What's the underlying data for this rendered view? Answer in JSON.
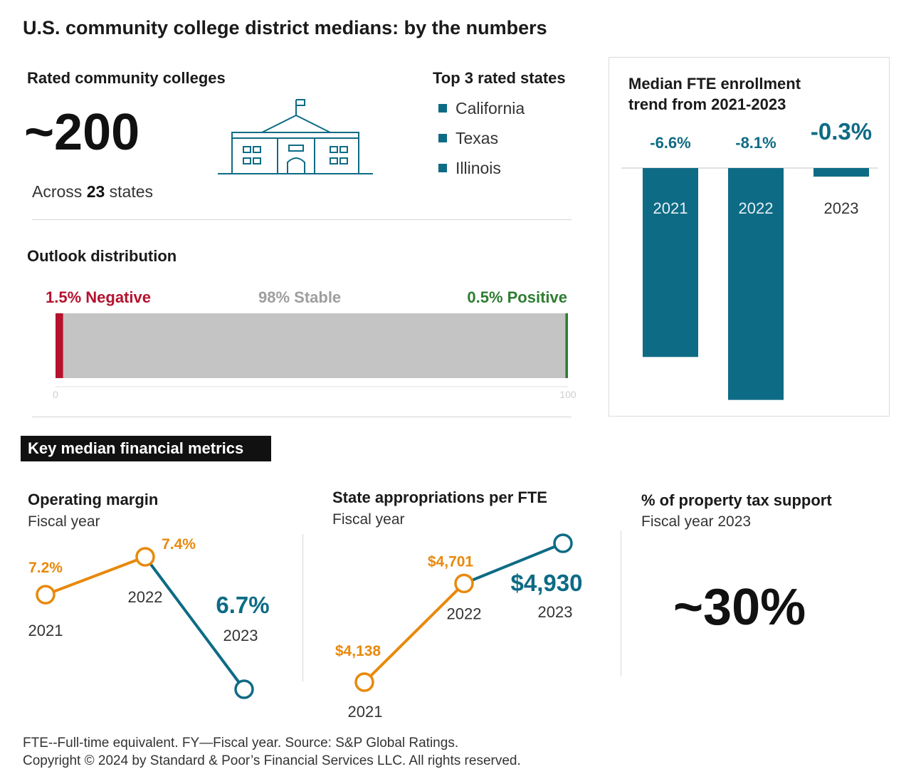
{
  "title": "U.S. community college district medians: by the numbers",
  "rated": {
    "heading": "Rated community colleges",
    "count": "~200",
    "across_prefix": "Across ",
    "across_number": "23",
    "across_suffix": " states"
  },
  "top_states": {
    "heading": "Top 3 rated states",
    "items": [
      "California",
      "Texas",
      "Illinois"
    ]
  },
  "outlook": {
    "heading": "Outlook distribution",
    "negative_label": "1.5% Negative",
    "stable_label": "98% Stable",
    "positive_label": "0.5% Positive",
    "axis_min": "0",
    "axis_max": "100"
  },
  "key_metrics_label": "Key median financial metrics",
  "operating_margin": {
    "heading": "Operating margin",
    "subheading": "Fiscal year"
  },
  "state_approp": {
    "heading": "State appropriations per FTE",
    "subheading": "Fiscal year"
  },
  "property_tax": {
    "heading": "% of property tax support",
    "subheading": "Fiscal year 2023",
    "value": "~30%"
  },
  "fte_panel": {
    "heading_line1": "Median FTE enrollment",
    "heading_line2": "trend from 2021-2023"
  },
  "footer": {
    "line1": "FTE--Full-time equivalent. FY—Fiscal year. Source: S&P Global Ratings.",
    "line2": "Copyright © 2024 by Standard & Poor’s Financial Services LLC. All rights reserved."
  },
  "colors": {
    "teal": "#0e6b85",
    "orange": "#e8890c",
    "negative": "#b5122e",
    "stable": "#c4c4c4",
    "positive": "#2e7d32",
    "black": "#111111"
  },
  "chart_data": [
    {
      "type": "bar",
      "orientation": "horizontal-stacked",
      "segments": [
        {
          "name": "Negative",
          "value": 1.5,
          "label": "1.5% Negative"
        },
        {
          "name": "Stable",
          "value": 98,
          "label": "98% Stable"
        },
        {
          "name": "Positive",
          "value": 0.5,
          "label": "0.5% Positive"
        }
      ],
      "xlim": [
        0,
        100
      ]
    },
    {
      "type": "bar",
      "categories": [
        "2021",
        "2022",
        "2023"
      ],
      "values": [
        -6.6,
        -8.1,
        -0.3
      ],
      "labels": [
        "-6.6%",
        "-8.1%",
        "-0.3%"
      ],
      "ylim": [
        -8.5,
        0
      ]
    },
    {
      "type": "line",
      "x": [
        "2021",
        "2022",
        "2023"
      ],
      "values": [
        7.2,
        7.4,
        6.7
      ],
      "labels": [
        "7.2%",
        "7.4%",
        "6.7%"
      ]
    },
    {
      "type": "line",
      "x": [
        "2021",
        "2022",
        "2023"
      ],
      "values": [
        4138,
        4701,
        4930
      ],
      "labels": [
        "$4,138",
        "$4,701",
        "$4,930"
      ]
    }
  ]
}
